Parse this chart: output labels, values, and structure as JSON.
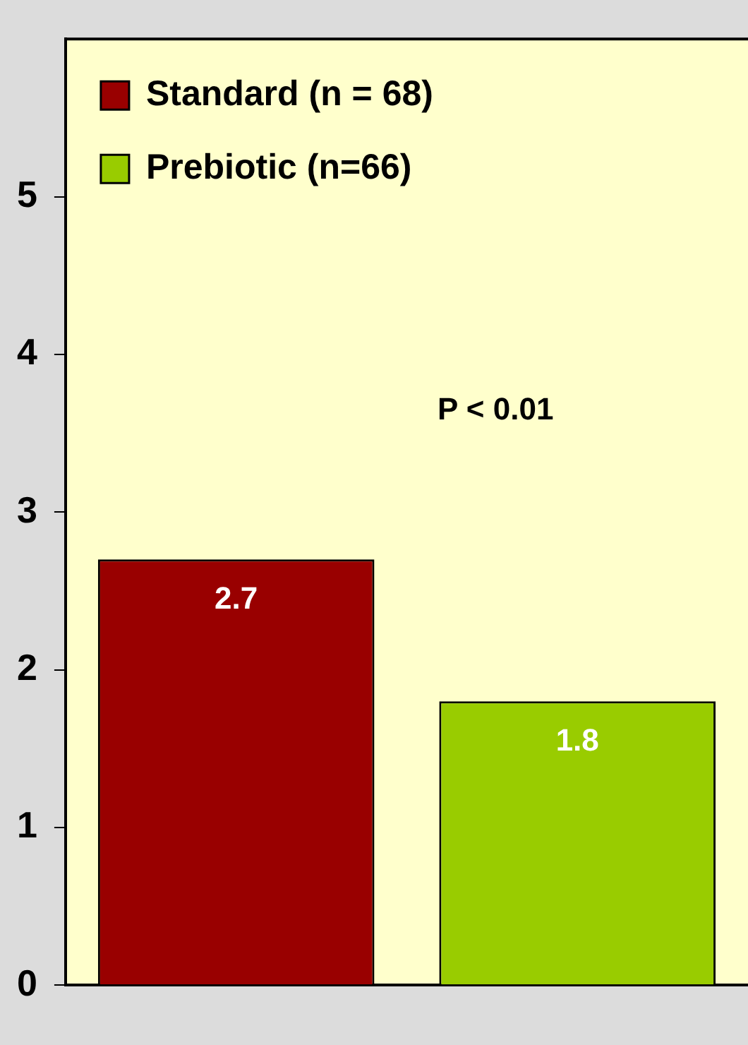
{
  "chart_data": {
    "type": "bar",
    "categories": [
      null,
      null
    ],
    "series": [
      {
        "name": "Standard (n = 68)",
        "color": "#990000",
        "values": [
          2.7,
          null
        ]
      },
      {
        "name": "Prebiotic (n=66)",
        "color": "#99cc00",
        "values": [
          null,
          1.8
        ]
      }
    ],
    "ylim": [
      0,
      6
    ],
    "yticks": [
      0,
      1,
      2,
      3,
      4,
      5
    ],
    "grid": false,
    "legend": "top left",
    "data_labels": true,
    "annotations": [
      "P < 0.01"
    ]
  }
}
